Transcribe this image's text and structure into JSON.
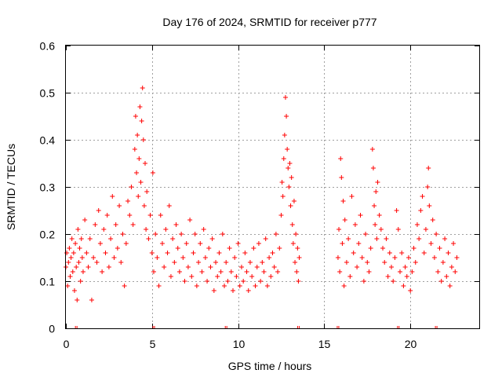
{
  "chart_data": {
    "type": "scatter",
    "title": "Day 176 of 2024, SRMTID for receiver p777",
    "xlabel": "GPS time / hours",
    "ylabel": "SRMTID / TECUs",
    "xlim": [
      0,
      24
    ],
    "ylim": [
      0,
      0.6
    ],
    "xticks": [
      0,
      5,
      10,
      15,
      20
    ],
    "xtick_labels": [
      "0",
      "5",
      "10",
      "15",
      "20"
    ],
    "yticks": [
      0,
      0.1,
      0.2,
      0.3,
      0.4,
      0.5,
      0.6
    ],
    "ytick_labels": [
      "0",
      "0.1",
      "0.2",
      "0.3",
      "0.4",
      "0.5",
      "0.6"
    ],
    "grid": true,
    "marker": "+",
    "color": "#ff0000",
    "series": [
      {
        "name": "SRMTID",
        "points": [
          [
            0.0,
            0.13
          ],
          [
            0.05,
            0.16
          ],
          [
            0.1,
            0.09
          ],
          [
            0.15,
            0.14
          ],
          [
            0.2,
            0.17
          ],
          [
            0.25,
            0.11
          ],
          [
            0.3,
            0.15
          ],
          [
            0.35,
            0.19
          ],
          [
            0.4,
            0.12
          ],
          [
            0.45,
            0.16
          ],
          [
            0.5,
            0.08
          ],
          [
            0.55,
            0.18
          ],
          [
            0.6,
            0.13
          ],
          [
            0.65,
            0.06
          ],
          [
            0.7,
            0.21
          ],
          [
            0.75,
            0.14
          ],
          [
            0.8,
            0.17
          ],
          [
            0.85,
            0.1
          ],
          [
            0.9,
            0.19
          ],
          [
            0.95,
            0.15
          ],
          [
            1.0,
            0.12
          ],
          [
            1.1,
            0.23
          ],
          [
            1.2,
            0.16
          ],
          [
            1.3,
            0.13
          ],
          [
            1.4,
            0.19
          ],
          [
            1.5,
            0.06
          ],
          [
            1.6,
            0.15
          ],
          [
            1.7,
            0.22
          ],
          [
            1.8,
            0.14
          ],
          [
            1.9,
            0.25
          ],
          [
            2.0,
            0.18
          ],
          [
            2.1,
            0.12
          ],
          [
            2.2,
            0.21
          ],
          [
            2.3,
            0.16
          ],
          [
            2.4,
            0.24
          ],
          [
            2.5,
            0.13
          ],
          [
            2.6,
            0.19
          ],
          [
            2.7,
            0.28
          ],
          [
            2.8,
            0.15
          ],
          [
            2.9,
            0.22
          ],
          [
            3.0,
            0.17
          ],
          [
            3.1,
            0.26
          ],
          [
            3.2,
            0.14
          ],
          [
            3.3,
            0.2
          ],
          [
            3.4,
            0.09
          ],
          [
            3.5,
            0.18
          ],
          [
            3.6,
            0.27
          ],
          [
            3.7,
            0.24
          ],
          [
            3.8,
            0.3
          ],
          [
            3.9,
            0.22
          ],
          [
            4.0,
            0.38
          ],
          [
            4.05,
            0.45
          ],
          [
            4.1,
            0.33
          ],
          [
            4.15,
            0.41
          ],
          [
            4.2,
            0.28
          ],
          [
            4.25,
            0.36
          ],
          [
            4.3,
            0.47
          ],
          [
            4.35,
            0.31
          ],
          [
            4.4,
            0.44
          ],
          [
            4.45,
            0.51
          ],
          [
            4.5,
            0.4
          ],
          [
            4.55,
            0.26
          ],
          [
            4.6,
            0.35
          ],
          [
            4.65,
            0.21
          ],
          [
            4.7,
            0.29
          ],
          [
            4.8,
            0.19
          ],
          [
            4.9,
            0.24
          ],
          [
            5.0,
            0.16
          ],
          [
            5.05,
            0.33
          ],
          [
            5.1,
            0.12
          ],
          [
            5.2,
            0.2
          ],
          [
            5.3,
            0.15
          ],
          [
            5.4,
            0.09
          ],
          [
            5.5,
            0.24
          ],
          [
            5.6,
            0.18
          ],
          [
            5.7,
            0.13
          ],
          [
            5.8,
            0.21
          ],
          [
            5.9,
            0.16
          ],
          [
            6.0,
            0.26
          ],
          [
            6.1,
            0.11
          ],
          [
            6.2,
            0.19
          ],
          [
            6.3,
            0.14
          ],
          [
            6.4,
            0.22
          ],
          [
            6.5,
            0.17
          ],
          [
            6.6,
            0.12
          ],
          [
            6.7,
            0.2
          ],
          [
            6.8,
            0.15
          ],
          [
            6.9,
            0.1
          ],
          [
            7.0,
            0.18
          ],
          [
            7.1,
            0.13
          ],
          [
            7.2,
            0.23
          ],
          [
            7.3,
            0.11
          ],
          [
            7.4,
            0.16
          ],
          [
            7.5,
            0.2
          ],
          [
            7.6,
            0.09
          ],
          [
            7.7,
            0.14
          ],
          [
            7.8,
            0.18
          ],
          [
            7.9,
            0.12
          ],
          [
            8.0,
            0.21
          ],
          [
            8.1,
            0.15
          ],
          [
            8.2,
            0.1
          ],
          [
            8.3,
            0.17
          ],
          [
            8.4,
            0.13
          ],
          [
            8.5,
            0.19
          ],
          [
            8.6,
            0.08
          ],
          [
            8.7,
            0.14
          ],
          [
            8.8,
            0.11
          ],
          [
            8.9,
            0.16
          ],
          [
            9.0,
            0.12
          ],
          [
            9.1,
            0.2
          ],
          [
            9.2,
            0.09
          ],
          [
            9.3,
            0.14
          ],
          [
            9.4,
            0.1
          ],
          [
            9.5,
            0.17
          ],
          [
            9.6,
            0.12
          ],
          [
            9.7,
            0.08
          ],
          [
            9.8,
            0.15
          ],
          [
            9.9,
            0.11
          ],
          [
            10.0,
            0.18
          ],
          [
            10.1,
            0.09
          ],
          [
            10.2,
            0.13
          ],
          [
            10.3,
            0.1
          ],
          [
            10.4,
            0.16
          ],
          [
            10.5,
            0.12
          ],
          [
            10.6,
            0.08
          ],
          [
            10.7,
            0.14
          ],
          [
            10.8,
            0.11
          ],
          [
            10.9,
            0.17
          ],
          [
            11.0,
            0.09
          ],
          [
            11.1,
            0.13
          ],
          [
            11.2,
            0.18
          ],
          [
            11.3,
            0.1
          ],
          [
            11.4,
            0.14
          ],
          [
            11.5,
            0.12
          ],
          [
            11.6,
            0.19
          ],
          [
            11.7,
            0.09
          ],
          [
            11.8,
            0.15
          ],
          [
            11.9,
            0.11
          ],
          [
            12.0,
            0.16
          ],
          [
            12.1,
            0.13
          ],
          [
            12.2,
            0.2
          ],
          [
            12.3,
            0.12
          ],
          [
            12.4,
            0.17
          ],
          [
            12.5,
            0.24
          ],
          [
            12.55,
            0.31
          ],
          [
            12.6,
            0.28
          ],
          [
            12.65,
            0.36
          ],
          [
            12.7,
            0.41
          ],
          [
            12.75,
            0.49
          ],
          [
            12.8,
            0.45
          ],
          [
            12.85,
            0.38
          ],
          [
            12.9,
            0.34
          ],
          [
            12.95,
            0.3
          ],
          [
            13.0,
            0.35
          ],
          [
            13.05,
            0.26
          ],
          [
            13.1,
            0.32
          ],
          [
            13.15,
            0.22
          ],
          [
            13.2,
            0.18
          ],
          [
            13.25,
            0.27
          ],
          [
            13.3,
            0.14
          ],
          [
            13.35,
            0.2
          ],
          [
            13.4,
            0.12
          ],
          [
            13.45,
            0.17
          ],
          [
            13.5,
            0.1
          ],
          [
            13.55,
            0.15
          ],
          [
            15.8,
            0.15
          ],
          [
            15.85,
            0.21
          ],
          [
            15.9,
            0.12
          ],
          [
            15.95,
            0.36
          ],
          [
            16.0,
            0.32
          ],
          [
            16.05,
            0.18
          ],
          [
            16.1,
            0.27
          ],
          [
            16.15,
            0.09
          ],
          [
            16.2,
            0.23
          ],
          [
            16.3,
            0.14
          ],
          [
            16.4,
            0.19
          ],
          [
            16.5,
            0.11
          ],
          [
            16.6,
            0.28
          ],
          [
            16.7,
            0.16
          ],
          [
            16.8,
            0.22
          ],
          [
            16.9,
            0.13
          ],
          [
            17.0,
            0.18
          ],
          [
            17.1,
            0.24
          ],
          [
            17.2,
            0.15
          ],
          [
            17.3,
            0.1
          ],
          [
            17.4,
            0.2
          ],
          [
            17.5,
            0.14
          ],
          [
            17.6,
            0.12
          ],
          [
            17.7,
            0.17
          ],
          [
            17.8,
            0.38
          ],
          [
            17.85,
            0.34
          ],
          [
            17.9,
            0.26
          ],
          [
            17.95,
            0.22
          ],
          [
            18.0,
            0.29
          ],
          [
            18.05,
            0.19
          ],
          [
            18.1,
            0.31
          ],
          [
            18.2,
            0.24
          ],
          [
            18.3,
            0.21
          ],
          [
            18.4,
            0.17
          ],
          [
            18.5,
            0.14
          ],
          [
            18.6,
            0.19
          ],
          [
            18.7,
            0.11
          ],
          [
            18.8,
            0.16
          ],
          [
            18.9,
            0.13
          ],
          [
            19.0,
            0.1
          ],
          [
            19.1,
            0.15
          ],
          [
            19.2,
            0.25
          ],
          [
            19.3,
            0.21
          ],
          [
            19.4,
            0.12
          ],
          [
            19.5,
            0.16
          ],
          [
            19.6,
            0.09
          ],
          [
            19.7,
            0.13
          ],
          [
            19.8,
            0.11
          ],
          [
            19.9,
            0.15
          ],
          [
            20.0,
            0.08
          ],
          [
            20.1,
            0.12
          ],
          [
            20.2,
            0.17
          ],
          [
            20.3,
            0.14
          ],
          [
            20.4,
            0.22
          ],
          [
            20.5,
            0.19
          ],
          [
            20.6,
            0.25
          ],
          [
            20.7,
            0.28
          ],
          [
            20.8,
            0.16
          ],
          [
            20.9,
            0.21
          ],
          [
            21.0,
            0.3
          ],
          [
            21.05,
            0.34
          ],
          [
            21.1,
            0.26
          ],
          [
            21.2,
            0.18
          ],
          [
            21.3,
            0.23
          ],
          [
            21.4,
            0.15
          ],
          [
            21.5,
            0.2
          ],
          [
            21.6,
            0.12
          ],
          [
            21.7,
            0.17
          ],
          [
            21.8,
            0.1
          ],
          [
            21.9,
            0.14
          ],
          [
            22.0,
            0.19
          ],
          [
            22.1,
            0.11
          ],
          [
            22.2,
            0.16
          ],
          [
            22.3,
            0.09
          ],
          [
            22.4,
            0.13
          ],
          [
            22.5,
            0.18
          ],
          [
            22.6,
            0.12
          ],
          [
            22.7,
            0.15
          ]
        ]
      }
    ],
    "axis_marks": [
      0.6,
      5.1,
      9.3,
      13.5,
      15.8,
      19.3,
      21.5
    ]
  }
}
